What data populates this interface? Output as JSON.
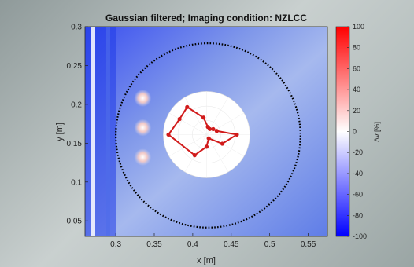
{
  "chart_data": [
    {
      "type": "heatmap",
      "title": "Gaussian filtered; Imaging condition: NZLCC",
      "xlabel": "x [m]",
      "ylabel": "y [m]",
      "xlim": [
        0.26,
        0.575
      ],
      "ylim": [
        0.03,
        0.3
      ],
      "x_ticks": [
        0.3,
        0.35,
        0.4,
        0.45,
        0.5,
        0.55
      ],
      "x_tick_labels": [
        "0.3",
        "0.35",
        "0.4",
        "0.45",
        "0.5",
        "0.55"
      ],
      "y_ticks": [
        0.05,
        0.1,
        0.15,
        0.2,
        0.25,
        0.3
      ],
      "y_tick_labels": [
        "0.05",
        "0.1",
        "0.15",
        "0.2",
        "0.25",
        "0.3"
      ],
      "colorbar": {
        "label": "Δv [%]",
        "range": [
          -100,
          100
        ],
        "ticks": [
          100,
          80,
          60,
          40,
          20,
          0,
          -20,
          -40,
          -60,
          -80,
          -100
        ],
        "tick_labels": [
          "100",
          "80",
          "60",
          "40",
          "20",
          "0",
          "-20",
          "-40",
          "-60",
          "-80",
          "-100"
        ],
        "colors": {
          "low": "#0000ff",
          "mid": "#ffffff",
          "high": "#ff0000"
        }
      },
      "dashed_circle": {
        "center": [
          0.42,
          0.16
        ],
        "radius": 0.12,
        "color": "#000000"
      },
      "hot_spots": [
        {
          "x": 0.335,
          "y": 0.208
        },
        {
          "x": 0.335,
          "y": 0.17
        },
        {
          "x": 0.335,
          "y": 0.132
        }
      ]
    },
    {
      "type": "polar",
      "series": [
        {
          "color": "#d11a1a",
          "points": [
            {
              "angle": 0,
              "r": 0.7
            },
            {
              "angle": 20,
              "r": 0.25
            },
            {
              "angle": 40,
              "r": 0.2
            },
            {
              "angle": 60,
              "r": 0.15
            },
            {
              "angle": 80,
              "r": 0.18
            },
            {
              "angle": 100,
              "r": 0.4
            },
            {
              "angle": 125,
              "r": 0.78
            },
            {
              "angle": 150,
              "r": 0.72
            },
            {
              "angle": 180,
              "r": 0.88
            },
            {
              "angle": 240,
              "r": 0.55
            },
            {
              "angle": 270,
              "r": 0.28
            },
            {
              "angle": 300,
              "r": 0.1
            },
            {
              "angle": 330,
              "r": 0.42
            }
          ]
        }
      ]
    }
  ]
}
